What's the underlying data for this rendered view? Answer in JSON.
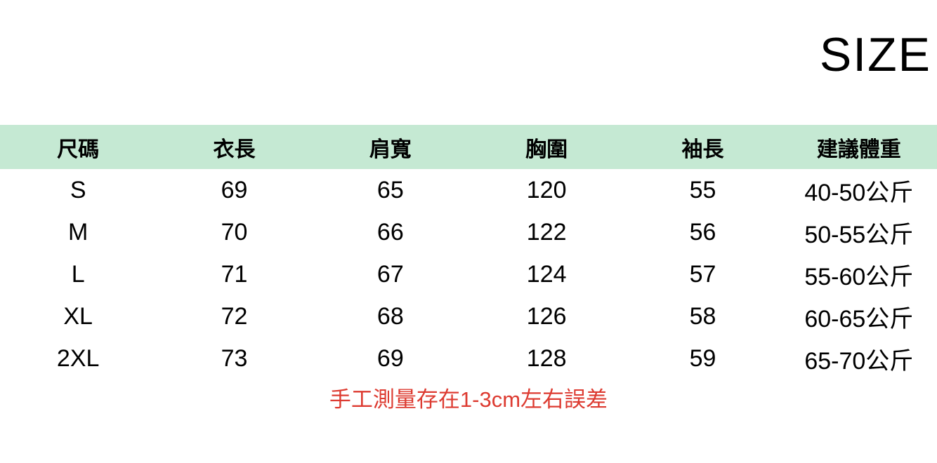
{
  "chart_data": {
    "type": "table",
    "title": "SIZE",
    "columns": [
      "尺碼",
      "衣長",
      "肩寬",
      "胸圍",
      "袖長",
      "建議體重"
    ],
    "rows": [
      [
        "S",
        "69",
        "65",
        "120",
        "55",
        "40-50公斤"
      ],
      [
        "M",
        "70",
        "66",
        "122",
        "56",
        "50-55公斤"
      ],
      [
        "L",
        "71",
        "67",
        "124",
        "57",
        "55-60公斤"
      ],
      [
        "XL",
        "72",
        "68",
        "126",
        "58",
        "60-65公斤"
      ],
      [
        "2XL",
        "73",
        "69",
        "128",
        "59",
        "65-70公斤"
      ]
    ],
    "note": "手工測量存在1-3cm左右誤差",
    "layout_hints": {
      "header_position": "top",
      "grid": "off",
      "columns_equal_width": true
    }
  },
  "colors": {
    "header_bg": "#c5e9d3",
    "note_color": "#dd3b31",
    "text_color": "#000000",
    "background": "#ffffff"
  }
}
